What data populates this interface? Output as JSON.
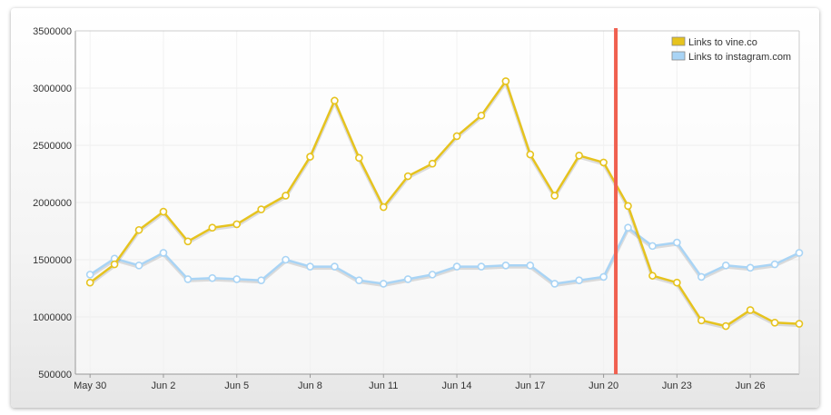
{
  "chart_data": {
    "type": "line",
    "title": "",
    "xlabel": "",
    "ylabel": "",
    "ylim": [
      500000,
      3500000
    ],
    "y_ticks": [
      "500000",
      "1000000",
      "1500000",
      "2000000",
      "2500000",
      "3000000",
      "3500000"
    ],
    "x_ticks": [
      {
        "label": "May 30",
        "index": 0
      },
      {
        "label": "Jun 2",
        "index": 3
      },
      {
        "label": "Jun 5",
        "index": 6
      },
      {
        "label": "Jun 8",
        "index": 9
      },
      {
        "label": "Jun 11",
        "index": 12
      },
      {
        "label": "Jun 14",
        "index": 15
      },
      {
        "label": "Jun 17",
        "index": 18
      },
      {
        "label": "Jun 20",
        "index": 21
      },
      {
        "label": "Jun 23",
        "index": 24
      },
      {
        "label": "Jun 26",
        "index": 27
      }
    ],
    "x": [
      "May 29",
      "May 30",
      "May 31",
      "Jun 1",
      "Jun 2",
      "Jun 3",
      "Jun 4",
      "Jun 5",
      "Jun 6",
      "Jun 7",
      "Jun 8",
      "Jun 9",
      "Jun 10",
      "Jun 11",
      "Jun 12",
      "Jun 13",
      "Jun 14",
      "Jun 15",
      "Jun 16",
      "Jun 17",
      "Jun 18",
      "Jun 19",
      "Jun 20",
      "Jun 21",
      "Jun 22",
      "Jun 23",
      "Jun 24",
      "Jun 25",
      "Jun 26",
      "Jun 27"
    ],
    "x_start_offset": -0.6,
    "grid": true,
    "legend_position": "top-right",
    "series": [
      {
        "name": "Links to vine.co",
        "color": "#e6c31e",
        "values": [
          1300000,
          1460000,
          1760000,
          1920000,
          1660000,
          1780000,
          1810000,
          1940000,
          2060000,
          2400000,
          2890000,
          2390000,
          1960000,
          2230000,
          2340000,
          2580000,
          2760000,
          3060000,
          2420000,
          2060000,
          2410000,
          2350000,
          1970000,
          1360000,
          1300000,
          970000,
          920000,
          1060000,
          950000,
          940000
        ]
      },
      {
        "name": "Links to instagram.com",
        "color": "#a9d4f5",
        "values": [
          1370000,
          1510000,
          1450000,
          1560000,
          1330000,
          1340000,
          1330000,
          1320000,
          1500000,
          1440000,
          1440000,
          1320000,
          1290000,
          1330000,
          1370000,
          1440000,
          1440000,
          1450000,
          1450000,
          1290000,
          1320000,
          1350000,
          1780000,
          1620000,
          1650000,
          1350000,
          1450000,
          1430000,
          1460000,
          1560000
        ]
      }
    ],
    "marker_line": {
      "index": 21.5,
      "color": "#f06050"
    }
  }
}
